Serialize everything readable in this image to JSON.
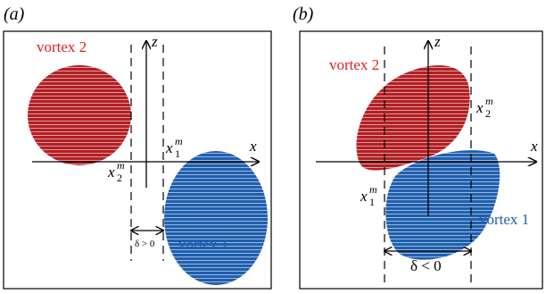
{
  "colors": {
    "vortex_red": "#B21F24",
    "vortex_blue": "#1F5FAE",
    "label_red": "#E01E24",
    "label_blue": "#1F5FAE",
    "stripe": "#ffffff",
    "ink": "#000000"
  },
  "panels": [
    {
      "label": "(a)",
      "axis_z": "z",
      "axis_x": "x",
      "vortex2_label": "vortex 2",
      "vortex1_label": "vortex 1",
      "x1m_label": {
        "base": "x",
        "sup": "m",
        "sub": "1"
      },
      "x2m_label": {
        "base": "x",
        "sup": "m",
        "sub": "2"
      },
      "delta_label": "δ > 0"
    },
    {
      "label": "(b)",
      "axis_z": "z",
      "axis_x": "x",
      "vortex2_label": "vortex 2",
      "vortex1_label": "vortex 1",
      "x1m_label": {
        "base": "x",
        "sup": "m",
        "sub": "1"
      },
      "x2m_label": {
        "base": "x",
        "sup": "m",
        "sub": "2"
      },
      "delta_label": "δ < 0"
    }
  ]
}
